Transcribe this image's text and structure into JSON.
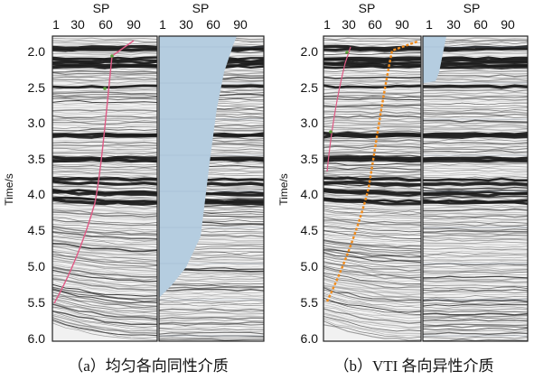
{
  "figure": {
    "panels": [
      {
        "id": "a",
        "caption": "（a）均匀各向同性介质",
        "y_axis_label": "Time/s",
        "y_ticks": [
          "2.0",
          "2.5",
          "3.0",
          "3.5",
          "4.0",
          "4.5",
          "5.0",
          "5.5",
          "6.0"
        ],
        "gathers": [
          {
            "title": "SP",
            "ticks": [
              "1",
              "30",
              "60",
              "90"
            ]
          },
          {
            "title": "SP",
            "ticks": [
              "1",
              "30",
              "60",
              "90"
            ]
          }
        ]
      },
      {
        "id": "b",
        "caption": "（b）VTI 各向异性介质",
        "y_axis_label": "Time/s",
        "y_ticks": [
          "2.0",
          "2.5",
          "3.0",
          "3.5",
          "4.0",
          "4.5",
          "5.0",
          "5.5",
          "6.0"
        ],
        "gathers": [
          {
            "title": "SP",
            "ticks": [
              "1",
              "30",
              "60",
              "90"
            ]
          },
          {
            "title": "SP",
            "ticks": [
              "1",
              "30",
              "60",
              "90"
            ]
          }
        ]
      }
    ],
    "colors": {
      "seismic_bg": "#f1f1f1",
      "trace_dark": "#1a1a1a",
      "trace_mid": "#666666",
      "mute_fill": "#b5cde0",
      "pink_curve": "#e05a86",
      "orange_curve": "#f08c1e",
      "green_point": "#5aa03c",
      "grid_line": "#8fa6c2"
    }
  }
}
